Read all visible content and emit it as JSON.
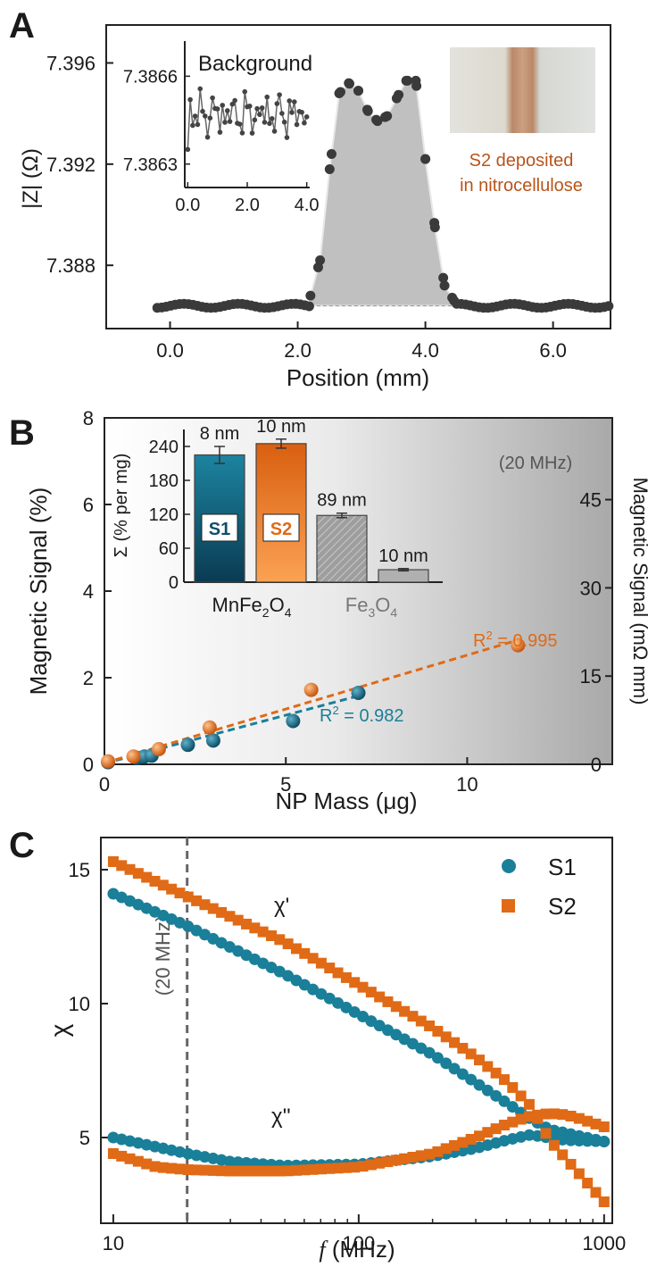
{
  "colors": {
    "s1": "#1a7f99",
    "s2": "#e06a16",
    "s1_dark": "#0d4f68",
    "s2_light": "#f4953f",
    "dark": "#333333",
    "gray_fill": "#c0c0c0",
    "accent_text": "#b8541a",
    "dashed_gray": "#555555"
  },
  "chart_data": [
    {
      "panel": "A",
      "type": "scatter",
      "xlabel": "Position (mm)",
      "ylabel": "|Z| (Ω)",
      "xlim": [
        -1.0,
        6.9
      ],
      "ylim": [
        7.3855,
        7.3975
      ],
      "xticks": [
        0.0,
        2.0,
        4.0,
        6.0
      ],
      "xtick_labels": [
        "0.0",
        "2.0",
        "4.0",
        "6.0"
      ],
      "yticks": [
        7.388,
        7.392,
        7.396
      ],
      "ytick_labels": [
        "7.388",
        "7.392",
        "7.396"
      ],
      "baseline": 7.3864,
      "peak_profile": {
        "x": [
          2.2,
          2.35,
          2.5,
          2.65,
          2.8,
          2.95,
          3.1,
          3.25,
          3.4,
          3.55,
          3.7,
          3.85,
          4.0,
          4.15,
          4.3,
          4.45
        ],
        "y": [
          7.3868,
          7.3882,
          7.3918,
          7.3948,
          7.3952,
          7.3949,
          7.3941,
          7.3937,
          7.3939,
          7.3946,
          7.3953,
          7.3953,
          7.3922,
          7.3895,
          7.3872,
          7.3866
        ]
      },
      "inset": {
        "title": "Background",
        "xlim": [
          -0.1,
          4.1
        ],
        "ylim": [
          7.38622,
          7.38672
        ],
        "xticks": [
          0.0,
          2.0,
          4.0
        ],
        "xtick_labels": [
          "0.0",
          "2.0",
          "4.0"
        ],
        "yticks": [
          7.3863,
          7.3866
        ],
        "ytick_labels": [
          "7.3863",
          "7.3866"
        ]
      },
      "photo_caption": [
        "S2 deposited",
        "in nitrocellulose"
      ]
    },
    {
      "panel": "B",
      "type": "scatter",
      "xlabel": "NP Mass (μg)",
      "ylabel": "Magnetic Signal (%)",
      "ylabel_right": "Magnetic Signal (mΩ mm)",
      "xlim": [
        0,
        14
      ],
      "ylim": [
        0,
        8
      ],
      "xticks": [
        0,
        5,
        10
      ],
      "xtick_labels": [
        "0",
        "5",
        "10"
      ],
      "yticks": [
        0,
        2,
        4,
        6,
        8
      ],
      "ytick_labels": [
        "0",
        "2",
        "4",
        "6",
        "8"
      ],
      "yticks_right": [
        0,
        15,
        30,
        45
      ],
      "ytick_right_labels": [
        "0",
        "15",
        "30",
        "45"
      ],
      "right_axis_max": 58.9,
      "frequency_note": "(20 MHz)",
      "series": [
        {
          "name": "S1",
          "x": [
            0.1,
            0.9,
            1.1,
            1.3,
            2.3,
            3.0,
            5.2,
            7.0
          ],
          "y": [
            0.05,
            0.15,
            0.18,
            0.2,
            0.45,
            0.55,
            1.0,
            1.65
          ],
          "fit": [
            0.0,
            0.02,
            7.0,
            1.58
          ],
          "r2": "R2 = 0.982"
        },
        {
          "name": "S2",
          "x": [
            0.1,
            0.8,
            1.5,
            2.9,
            5.7,
            11.4
          ],
          "y": [
            0.07,
            0.18,
            0.35,
            0.85,
            1.72,
            2.75
          ],
          "fit": [
            0.0,
            0.03,
            11.4,
            2.87
          ],
          "r2": "R2 = 0.995"
        }
      ],
      "inset": {
        "type": "bar",
        "ylabel": "Σ (% per mg)",
        "ylim": [
          0,
          270
        ],
        "yticks": [
          0,
          60,
          120,
          180,
          240
        ],
        "ytick_labels": [
          "0",
          "60",
          "120",
          "180",
          "240"
        ],
        "bars": [
          {
            "name": "S1",
            "value": 225,
            "err": 15,
            "size_label": "8 nm"
          },
          {
            "name": "S2",
            "value": 245,
            "err": 8,
            "size_label": "10 nm"
          },
          {
            "name": "Fe3O4-89",
            "value": 118,
            "err": 4,
            "size_label": "89 nm"
          },
          {
            "name": "Fe3O4-10",
            "value": 22,
            "err": 2,
            "size_label": "10 nm"
          }
        ],
        "group_labels": [
          "MnFe2O4",
          "Fe3O4"
        ]
      }
    },
    {
      "panel": "C",
      "type": "scatter",
      "xscale": "log",
      "xlabel": "f (MHz)",
      "ylabel": "χ",
      "xlim": [
        8.9,
        1080
      ],
      "ylim": [
        1.8,
        16.2
      ],
      "xticks": [
        10,
        100,
        1000
      ],
      "xtick_labels": [
        "10",
        "100",
        "1000"
      ],
      "yticks": [
        5,
        10,
        15
      ],
      "ytick_labels": [
        "5",
        "10",
        "15"
      ],
      "vline": 20,
      "vline_label": "(20 MHz)",
      "legend": [
        "S1",
        "S2"
      ],
      "curve_labels": [
        "χ'",
        "χ''"
      ],
      "series": [
        {
          "name": "S1 χ'",
          "marker": "circle",
          "x": [
            10,
            20,
            50,
            100,
            200,
            400,
            500,
            600,
            800,
            1000
          ],
          "y": [
            14.1,
            12.9,
            11.1,
            9.6,
            8.1,
            6.3,
            5.7,
            5.3,
            5.05,
            4.85
          ]
        },
        {
          "name": "S1 χ''",
          "marker": "circle",
          "x": [
            10,
            20,
            30,
            50,
            100,
            200,
            300,
            400,
            500,
            700,
            1000
          ],
          "y": [
            5.0,
            4.4,
            4.1,
            3.95,
            4.0,
            4.3,
            4.6,
            4.9,
            5.1,
            4.9,
            4.85
          ]
        },
        {
          "name": "S2 χ'",
          "marker": "square",
          "x": [
            10,
            20,
            50,
            100,
            200,
            300,
            400,
            500,
            600,
            800,
            1000
          ],
          "y": [
            15.3,
            14.0,
            12.3,
            10.7,
            9.1,
            8.0,
            7.1,
            6.2,
            4.9,
            3.6,
            2.6
          ]
        },
        {
          "name": "S2 χ''",
          "marker": "square",
          "x": [
            10,
            15,
            20,
            30,
            50,
            100,
            200,
            300,
            400,
            500,
            600,
            700,
            800,
            1000
          ],
          "y": [
            4.4,
            3.9,
            3.8,
            3.75,
            3.75,
            3.9,
            4.4,
            5.0,
            5.5,
            5.8,
            5.9,
            5.85,
            5.7,
            5.4
          ]
        }
      ]
    }
  ]
}
